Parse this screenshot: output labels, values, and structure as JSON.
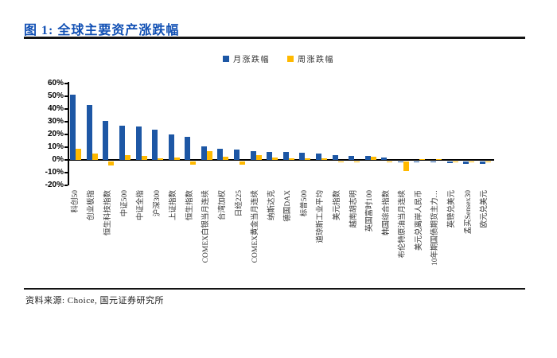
{
  "figure": {
    "title": "图 1: 全球主要资产涨跌幅",
    "source": "资料来源: Choice, 国元证券研究所"
  },
  "colors": {
    "title_blue": "#1150B4",
    "rule_dark": "#141414",
    "axis_black": "#000000",
    "monthly_blue": "#1D57A5",
    "weekly_yellow": "#FFB900"
  },
  "chart_data": {
    "type": "bar",
    "title": "全球主要资产涨跌幅",
    "categories": [
      "科创50",
      "创业板指",
      "恒生科技指数",
      "中证500",
      "中证全指",
      "沪深300",
      "上证指数",
      "恒生指数",
      "COMEX白银当月连续",
      "台湾加权",
      "日经225",
      "COMEX黄金当月连续",
      "纳斯达克",
      "德国DAX",
      "标普500",
      "道琼斯工业平均",
      "美元指数",
      "越南胡志明",
      "英国富时100",
      "韩国综合指数",
      "布伦特原油当月连续",
      "美元兑离岸人民币",
      "10年期国债期货主力…",
      "英镑兑美元",
      "孟买Sensex30",
      "欧元兑美元"
    ],
    "series": [
      {
        "name": "月涨跌幅",
        "color": "#1D57A5",
        "values": [
          51,
          43,
          30.5,
          27,
          26,
          24,
          20,
          18,
          10.5,
          8.5,
          8,
          7,
          6.5,
          6,
          5.5,
          5,
          3.5,
          3.2,
          3,
          2,
          -0.8,
          -0.9,
          -1,
          -1.2,
          -2,
          -2.2
        ]
      },
      {
        "name": "周涨跌幅",
        "color": "#FFB900",
        "values": [
          9,
          5,
          -3,
          3.5,
          3,
          1.5,
          1.8,
          -2.5,
          7,
          2.5,
          -2.5,
          3.5,
          1.8,
          1.5,
          1.5,
          1,
          -0.5,
          -1,
          2.8,
          -0.8,
          -7.5,
          0.5,
          0.5,
          -0.5,
          -0.5,
          -0.5
        ]
      }
    ],
    "ylim": [
      -20,
      60
    ],
    "yticks": [
      {
        "label": "60%",
        "value": 60
      },
      {
        "label": "50%",
        "value": 50
      },
      {
        "label": "40%",
        "value": 40
      },
      {
        "label": "30%",
        "value": 30
      },
      {
        "label": "20%",
        "value": 20
      },
      {
        "label": "10%",
        "value": 10
      },
      {
        "label": "0%",
        "value": 0
      },
      {
        "label": "-10%",
        "value": -10
      },
      {
        "label": "-20%",
        "value": -20
      }
    ],
    "grid": false,
    "legend_position": "top",
    "xlabel": "",
    "ylabel": ""
  }
}
